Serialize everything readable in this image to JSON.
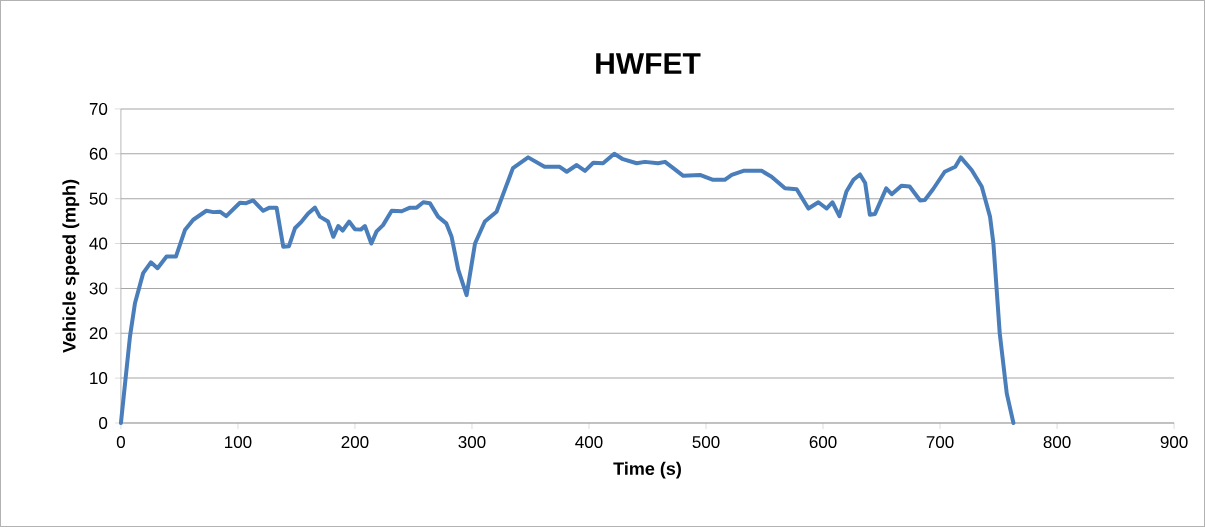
{
  "chart_data": {
    "type": "line",
    "title": "HWFET",
    "xlabel": "Time (s)",
    "ylabel": "Vehicle speed (mph)",
    "x": [
      0,
      7.7,
      12,
      19,
      25.6,
      31.3,
      39,
      47,
      54.7,
      61.8,
      73,
      79,
      84.6,
      90,
      101.7,
      107,
      113,
      121.6,
      127,
      133,
      138.7,
      143.6,
      148.7,
      154.4,
      160,
      165.8,
      170,
      177,
      181.5,
      185.7,
      189.5,
      195,
      200,
      205,
      208.5,
      214,
      218.5,
      224,
      231.4,
      240,
      247,
      252.7,
      258.4,
      264,
      271,
      278,
      282.6,
      288.3,
      295.4,
      302.6,
      311,
      321,
      335,
      348,
      362,
      375,
      381,
      389.5,
      396.6,
      403.7,
      412,
      421.6,
      429,
      440.7,
      447.8,
      459,
      465,
      472,
      480.6,
      494.8,
      506,
      516,
      522,
      532,
      547.5,
      556,
      567.5,
      577.5,
      587.5,
      596,
      603,
      608,
      614,
      620,
      626,
      631.6,
      636,
      640,
      644.4,
      654,
      658.7,
      667,
      674,
      683,
      687,
      694,
      704,
      713,
      717.7,
      727,
      735.6,
      742.7,
      745.6,
      751,
      757,
      762.7
    ],
    "values": [
      0,
      19.2,
      26.7,
      33.4,
      35.8,
      34.5,
      37.1,
      37.1,
      43,
      45.3,
      47.3,
      47,
      47.1,
      46.1,
      49.1,
      49,
      49.6,
      47.3,
      48,
      48,
      39.3,
      39.4,
      43.4,
      44.9,
      46.7,
      48,
      46,
      44.9,
      41.5,
      43.9,
      42.9,
      44.9,
      43.2,
      43.1,
      43.9,
      40,
      42.7,
      44.1,
      47.3,
      47.2,
      48,
      48,
      49.2,
      49,
      46,
      44.5,
      41.5,
      34.1,
      28.5,
      40,
      44.9,
      47.1,
      56.8,
      59.2,
      57.1,
      57.1,
      56,
      57.5,
      56.2,
      58,
      57.9,
      60,
      58.8,
      57.9,
      58.2,
      57.9,
      58.2,
      56.8,
      55.1,
      55.3,
      54.2,
      54.2,
      55.3,
      56.2,
      56.2,
      54.9,
      52.3,
      52.1,
      47.8,
      49.2,
      47.8,
      49.2,
      46.1,
      51.6,
      54.2,
      55.4,
      53.5,
      46.4,
      46.6,
      52.3,
      51,
      52.9,
      52.7,
      49.6,
      49.7,
      52.1,
      56,
      57.1,
      59.2,
      56.4,
      52.7,
      46,
      40,
      20,
      6.6,
      0
    ],
    "color": "#4a7ebb",
    "xlim": [
      0,
      900
    ],
    "ylim": [
      0,
      70
    ],
    "xticks": [
      0,
      100,
      200,
      300,
      400,
      500,
      600,
      700,
      800,
      900
    ],
    "yticks": [
      0,
      10,
      20,
      30,
      40,
      50,
      60,
      70
    ],
    "grid": "y",
    "marker": "none",
    "line_style": "solid"
  }
}
